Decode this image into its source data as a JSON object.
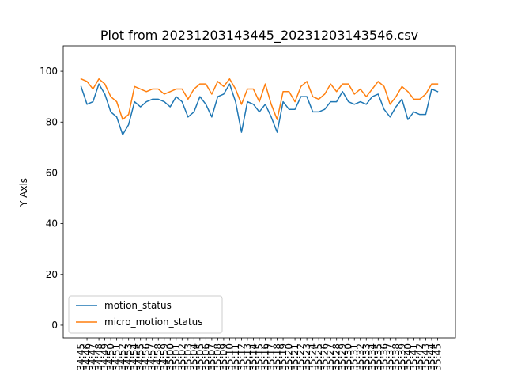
{
  "chart_data": {
    "type": "line",
    "title": "Plot from 20231203143445_20231203143546.csv",
    "xlabel": "",
    "ylabel": "Y Axis",
    "ylim": [
      -5,
      110
    ],
    "yticks": [
      0,
      20,
      40,
      60,
      80,
      100
    ],
    "grid": false,
    "legend_position": "lower-left",
    "x": [
      "34:45",
      "34:46",
      "34:47",
      "34:48",
      "34:49",
      "34:50",
      "34:51",
      "34:52",
      "34:53",
      "34:54",
      "34:55",
      "34:56",
      "34:57",
      "34:58",
      "34:59",
      "35:00",
      "35:01",
      "35:02",
      "35:03",
      "35:04",
      "35:05",
      "35:06",
      "35:07",
      "35:08",
      "35:09",
      "35:10",
      "35:11",
      "35:12",
      "35:13",
      "35:14",
      "35:15",
      "35:16",
      "35:17",
      "35:18",
      "35:19",
      "35:20",
      "35:21",
      "35:22",
      "35:23",
      "35:24",
      "35:25",
      "35:26",
      "35:27",
      "35:28",
      "35:29",
      "35:30",
      "35:31",
      "35:32",
      "35:33",
      "35:34",
      "35:35",
      "35:36",
      "35:37",
      "35:38",
      "35:39",
      "35:40",
      "35:41",
      "35:42",
      "35:43",
      "35:44",
      "35:45"
    ],
    "series": [
      {
        "name": "motion_status",
        "color": "#1f77b4",
        "values": [
          94,
          87,
          88,
          95,
          91,
          84,
          82,
          75,
          79,
          88,
          86,
          88,
          89,
          89,
          88,
          86,
          90,
          88,
          82,
          84,
          90,
          87,
          82,
          90,
          91,
          95,
          88,
          76,
          88,
          87,
          84,
          87,
          82,
          76,
          88,
          85,
          85,
          90,
          90,
          84,
          84,
          85,
          88,
          88,
          92,
          88,
          87,
          88,
          87,
          90,
          91,
          85,
          82,
          86,
          89,
          81,
          84,
          83,
          83,
          93,
          92
        ]
      },
      {
        "name": "micro_motion_status",
        "color": "#ff7f0e",
        "values": [
          97,
          96,
          93,
          97,
          95,
          90,
          88,
          81,
          83,
          94,
          93,
          92,
          93,
          93,
          91,
          92,
          93,
          93,
          89,
          93,
          95,
          95,
          91,
          96,
          94,
          97,
          93,
          87,
          93,
          93,
          88,
          95,
          87,
          81,
          92,
          92,
          88,
          94,
          96,
          90,
          89,
          91,
          95,
          92,
          95,
          95,
          91,
          93,
          90,
          93,
          96,
          94,
          87,
          90,
          94,
          92,
          89,
          89,
          91,
          95,
          95
        ]
      }
    ]
  }
}
